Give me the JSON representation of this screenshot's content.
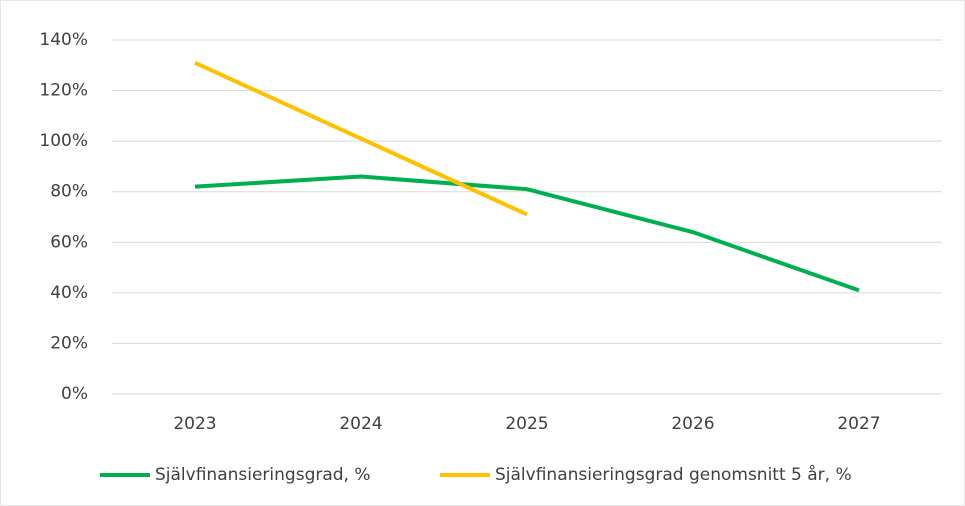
{
  "chart_data": {
    "type": "line",
    "categories": [
      "2023",
      "2024",
      "2025",
      "2026",
      "2027"
    ],
    "series": [
      {
        "name": "Självfinansieringsgrad, %",
        "color": "#00b050",
        "values": [
          82,
          86,
          81,
          64,
          41
        ]
      },
      {
        "name": "Självfinansieringsgrad genomsnitt 5 år, %",
        "color": "#ffc000",
        "values": [
          131,
          101,
          71,
          null,
          null
        ]
      }
    ],
    "ylim": [
      0,
      140
    ],
    "yticks": [
      {
        "value": 0,
        "label": "0%"
      },
      {
        "value": 20,
        "label": "20%"
      },
      {
        "value": 40,
        "label": "40%"
      },
      {
        "value": 60,
        "label": "60%"
      },
      {
        "value": 80,
        "label": "80%"
      },
      {
        "value": 100,
        "label": "100%"
      },
      {
        "value": 120,
        "label": "120%"
      },
      {
        "value": 140,
        "label": "140%"
      }
    ],
    "grid": true,
    "legend": "bottom"
  }
}
